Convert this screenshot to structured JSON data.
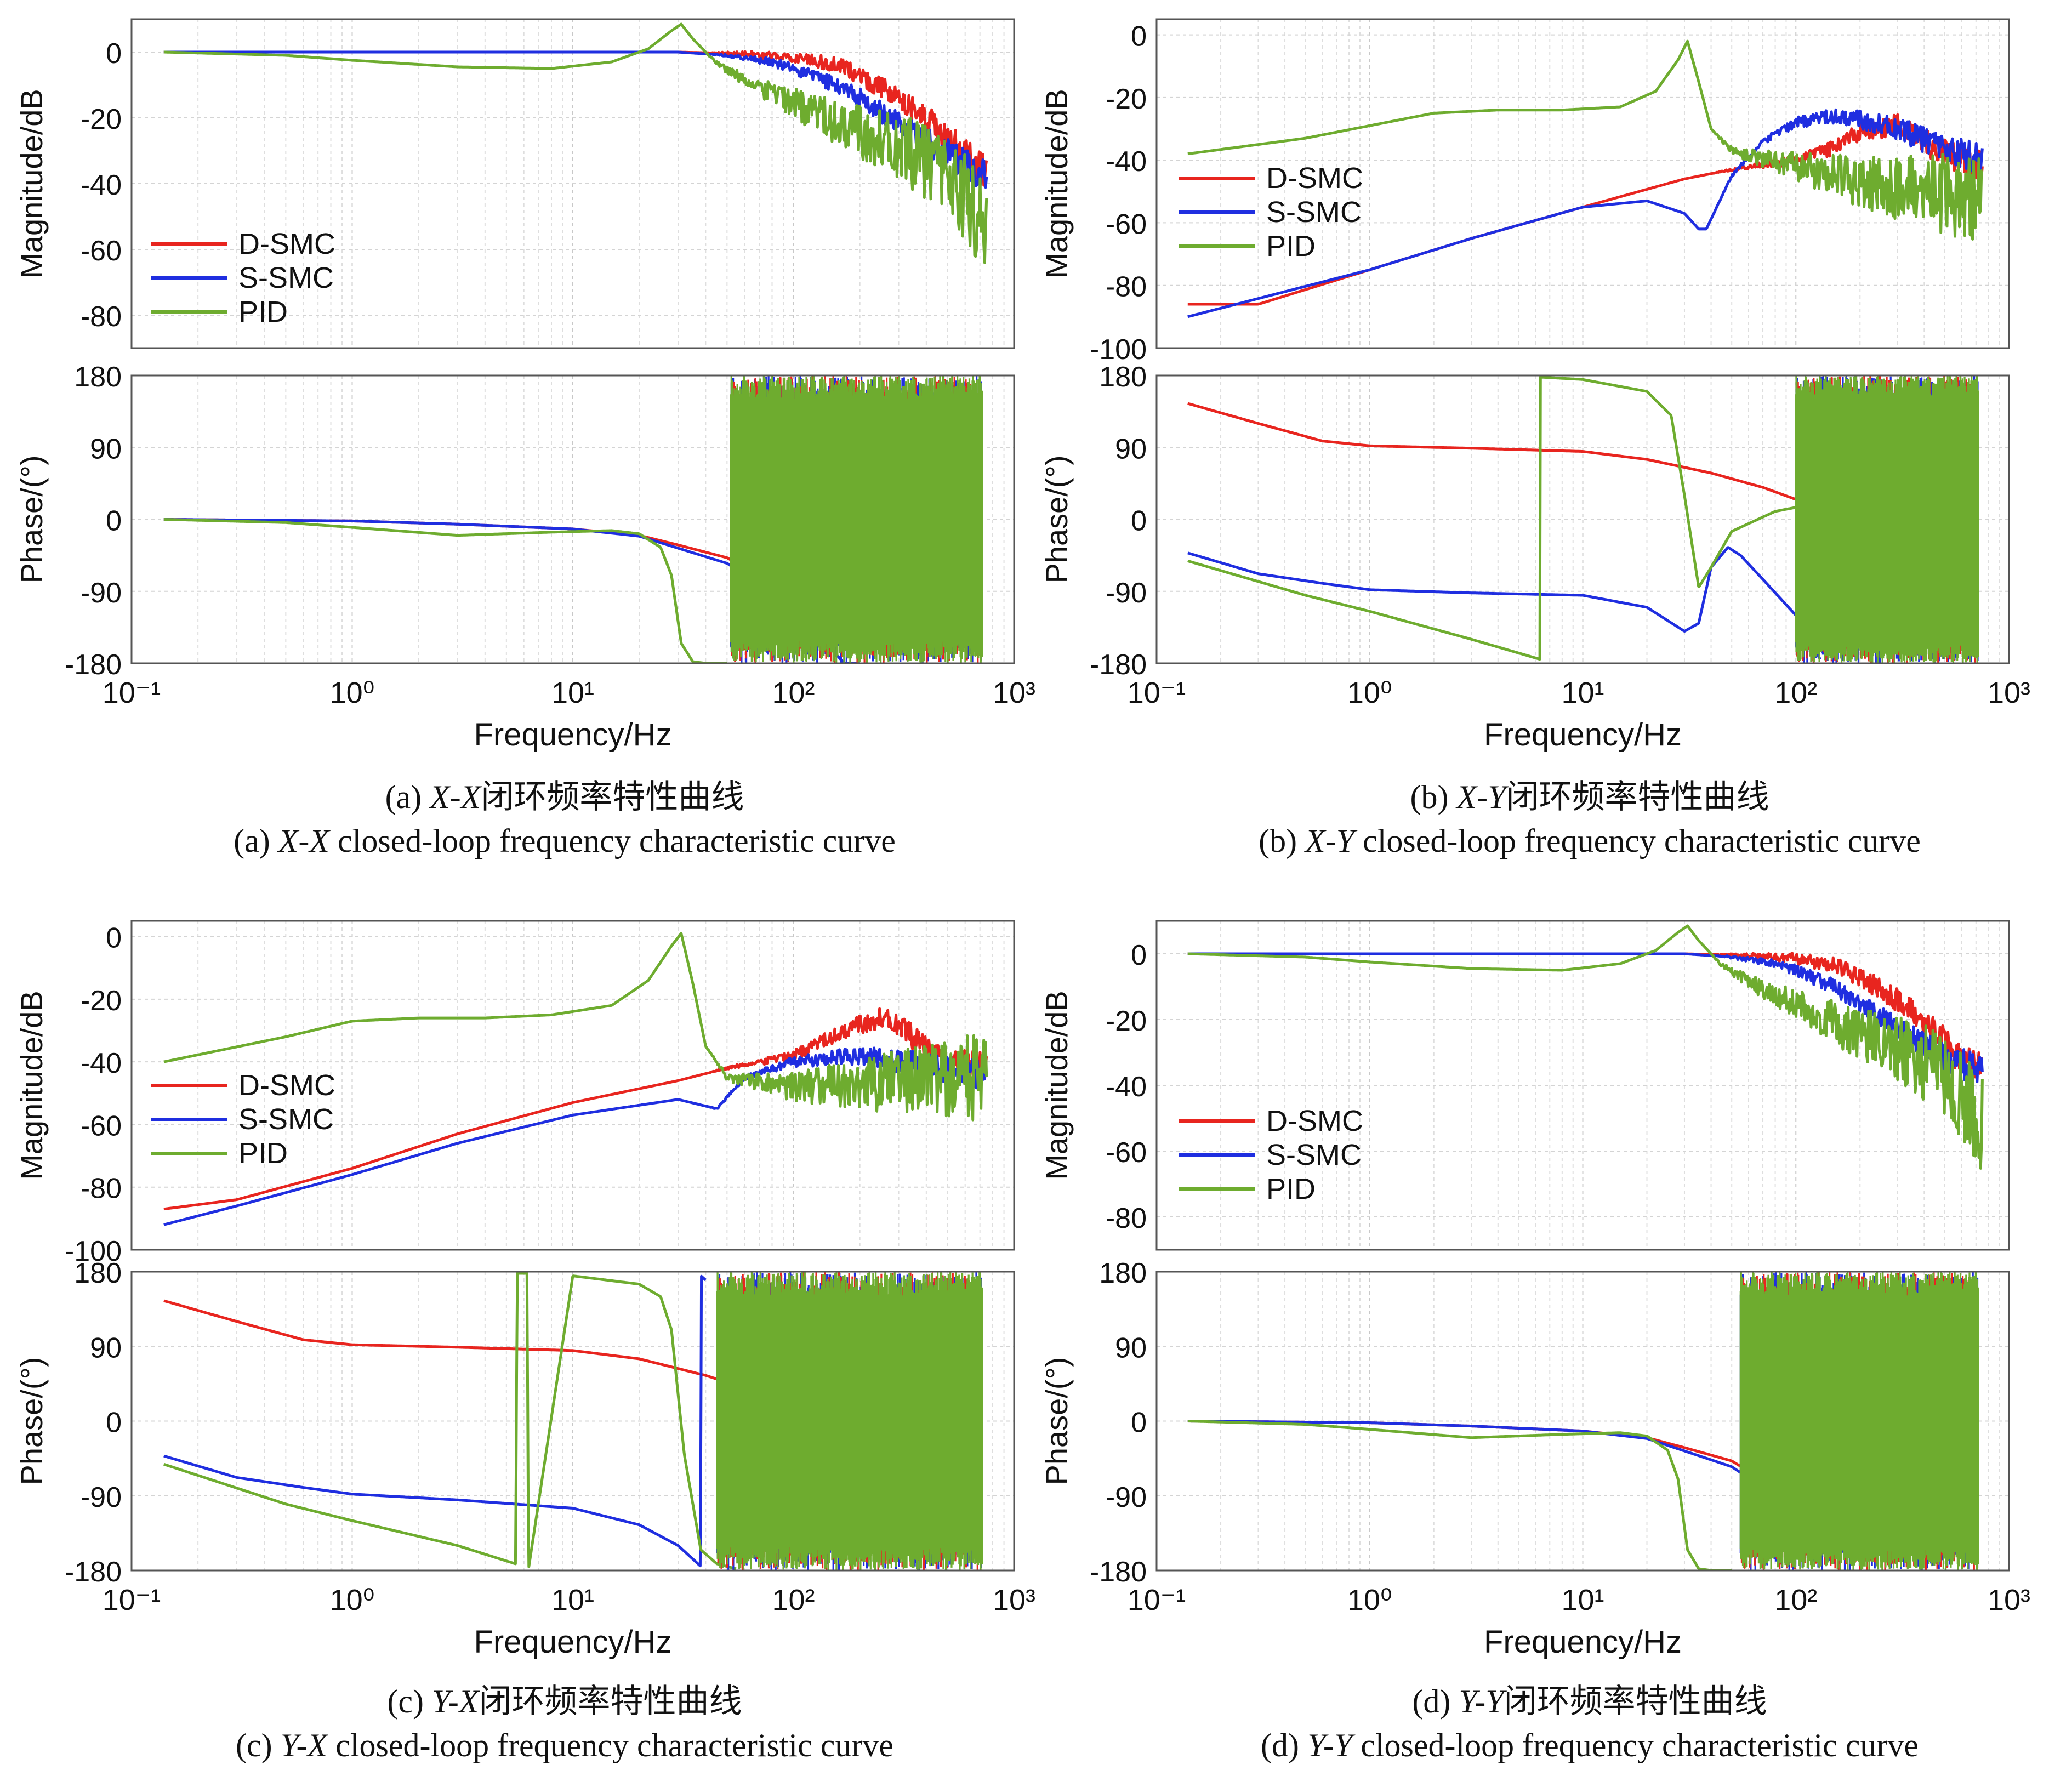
{
  "figure": {
    "legend_names": [
      "D-SMC",
      "S-SMC",
      "PID"
    ],
    "series_colors": {
      "D-SMC": "#e8251f",
      "S-SMC": "#1f2ee0",
      "PID": "#6eac2f"
    },
    "freq_axis": {
      "label": "Frequency/Hz",
      "ticks": [
        "10⁻¹",
        "10⁰",
        "10¹",
        "10²",
        "10³"
      ]
    },
    "magnitude_label": "Magnitude/dB",
    "phase_label": "Phase/(°)",
    "phase_ticks": [
      "180",
      "90",
      "0",
      "-90",
      "-180"
    ]
  },
  "chart_data": [
    {
      "id": "a",
      "type": "line",
      "title": "X-X closed-loop frequency characteristic curve",
      "xlabel": "Frequency/Hz",
      "xscale": "log",
      "xlim": [
        0.1,
        1000
      ],
      "magnitude": {
        "ylabel": "Magnitude/dB",
        "ylim": [
          -90,
          10
        ],
        "yticks": [
          "0",
          "-20",
          "-40",
          "-60",
          "-80"
        ],
        "series": [
          {
            "name": "D-SMC",
            "x": [
              0.14,
              1,
              10,
              30,
              60,
              100,
              150,
              200,
              300,
              400,
              500,
              600,
              750
            ],
            "y": [
              0,
              0,
              0,
              0,
              -0.5,
              -1.5,
              -3.5,
              -7,
              -14,
              -20,
              -26,
              -31,
              -37
            ]
          },
          {
            "name": "S-SMC",
            "x": [
              0.14,
              1,
              10,
              30,
              50,
              80,
              100,
              150,
              200,
              300,
              400,
              500,
              750
            ],
            "y": [
              0,
              0,
              0,
              0,
              -1,
              -3,
              -5,
              -9.5,
              -14,
              -22,
              -27,
              -31,
              -38
            ]
          },
          {
            "name": "PID",
            "x": [
              0.14,
              0.5,
              1,
              3,
              8,
              15,
              22,
              28,
              31,
              35,
              45,
              60,
              100,
              150,
              200,
              300,
              400,
              500,
              600,
              750
            ],
            "y": [
              0,
              -1,
              -2.5,
              -4.5,
              -5,
              -3,
              1,
              6.5,
              8.5,
              4,
              -3.5,
              -8.5,
              -15.5,
              -21,
              -24,
              -29,
              -33,
              -37,
              -44,
              -55
            ]
          }
        ]
      },
      "phase": {
        "ylabel": "Phase/(°)",
        "ylim": [
          -180,
          180
        ],
        "series": [
          {
            "name": "D-SMC",
            "x": [
              0.14,
              1,
              3,
              10,
              20,
              30,
              50,
              80,
              100,
              150,
              200
            ],
            "y": [
              0,
              -2,
              -6,
              -12,
              -20,
              -32,
              -48,
              -80,
              -95,
              -120,
              -140
            ]
          },
          {
            "name": "S-SMC",
            "x": [
              0.14,
              1,
              3,
              10,
              20,
              30,
              50,
              70,
              100,
              130,
              170,
              200
            ],
            "y": [
              0,
              -2,
              -6,
              -12,
              -21,
              -36,
              -55,
              -80,
              -110,
              -145,
              -180,
              -180
            ]
          },
          {
            "name": "PID",
            "x": [
              0.14,
              0.5,
              1,
              3,
              8,
              15,
              20,
              25,
              28,
              31,
              35,
              40,
              50
            ],
            "y": [
              0,
              -4,
              -10,
              -20,
              -16,
              -14,
              -18,
              -35,
              -70,
              -155,
              -178,
              -180,
              -180
            ]
          }
        ]
      }
    },
    {
      "id": "b",
      "type": "line",
      "title": "X-Y closed-loop frequency characteristic curve",
      "xlabel": "Frequency/Hz",
      "xscale": "log",
      "xlim": [
        0.1,
        1000
      ],
      "magnitude": {
        "ylabel": "Magnitude/dB",
        "ylim": [
          -100,
          5
        ],
        "yticks": [
          "0",
          "-20",
          "-40",
          "-60",
          "-80",
          "-100"
        ],
        "series": [
          {
            "name": "D-SMC",
            "x": [
              0.14,
              0.3,
              1,
              3,
              10,
              30,
              50,
              100,
              150,
              200,
              300,
              500,
              750
            ],
            "y": [
              -86,
              -86,
              -75,
              -65,
              -55,
              -46,
              -43,
              -40,
              -36,
              -31,
              -29,
              -38,
              -42
            ]
          },
          {
            "name": "S-SMC",
            "x": [
              0.14,
              1,
              3,
              10,
              20,
              30,
              35,
              38,
              50,
              70,
              100,
              150,
              200,
              300,
              500,
              750
            ],
            "y": [
              -90,
              -75,
              -65,
              -55,
              -53,
              -57,
              -62,
              -62,
              -45,
              -34,
              -28,
              -26,
              -27,
              -30,
              -36,
              -40
            ]
          },
          {
            "name": "PID",
            "x": [
              0.14,
              0.5,
              1,
              2,
              4,
              8,
              15,
              22,
              28,
              31,
              35,
              40,
              50,
              100,
              200,
              400,
              750
            ],
            "y": [
              -38,
              -33,
              -29,
              -25,
              -24,
              -24,
              -23,
              -18,
              -8,
              -2,
              -15,
              -30,
              -37,
              -42,
              -47,
              -50,
              -52
            ]
          }
        ]
      },
      "phase": {
        "ylabel": "Phase/(°)",
        "ylim": [
          -180,
          180
        ],
        "series": [
          {
            "name": "D-SMC",
            "x": [
              0.14,
              0.3,
              0.6,
              1,
              3,
              10,
              20,
              40,
              70,
              100
            ],
            "y": [
              145,
              120,
              98,
              92,
              89,
              85,
              75,
              58,
              40,
              25
            ]
          },
          {
            "name": "S-SMC",
            "x": [
              0.14,
              0.3,
              0.6,
              1,
              3,
              10,
              20,
              30,
              35,
              40,
              48,
              55,
              70,
              100,
              130
            ],
            "y": [
              -42,
              -68,
              -80,
              -88,
              -92,
              -95,
              -110,
              -140,
              -130,
              -60,
              -35,
              -45,
              -75,
              -120,
              -175
            ]
          },
          {
            "name": "PID",
            "x": [
              0.14,
              0.5,
              1,
              3,
              6.3,
              6.31,
              10,
              20,
              26,
              30,
              35,
              40,
              50,
              80,
              100
            ],
            "y": [
              -52,
              -95,
              -115,
              -150,
              -175,
              178,
              175,
              160,
              130,
              30,
              -85,
              -60,
              -15,
              10,
              15
            ]
          }
        ]
      }
    },
    {
      "id": "c",
      "type": "line",
      "title": "Y-X closed-loop frequency characteristic curve",
      "xlabel": "Frequency/Hz",
      "xscale": "log",
      "xlim": [
        0.1,
        1000
      ],
      "magnitude": {
        "ylabel": "Magnitude/dB",
        "ylim": [
          -100,
          5
        ],
        "yticks": [
          "0",
          "-20",
          "-40",
          "-60",
          "-80",
          "-100"
        ],
        "series": [
          {
            "name": "D-SMC",
            "x": [
              0.14,
              0.3,
              1,
              3,
              10,
              30,
              50,
              100,
              150,
              200,
              250,
              300,
              400,
              500,
              750
            ],
            "y": [
              -87,
              -84,
              -74,
              -63,
              -53,
              -46,
              -42,
              -38,
              -32,
              -28,
              -26,
              -28,
              -36,
              -40,
              -42
            ]
          },
          {
            "name": "S-SMC",
            "x": [
              0.14,
              0.3,
              1,
              3,
              10,
              30,
              45,
              60,
              100,
              200,
              400,
              750
            ],
            "y": [
              -92,
              -86,
              -76,
              -66,
              -57,
              -52,
              -55,
              -45,
              -40,
              -38,
              -41,
              -44
            ]
          },
          {
            "name": "PID",
            "x": [
              0.14,
              0.5,
              1,
              2,
              4,
              8,
              15,
              22,
              28,
              31,
              35,
              40,
              50,
              100,
              200,
              400,
              750
            ],
            "y": [
              -40,
              -32,
              -27,
              -26,
              -26,
              -25,
              -22,
              -14,
              -3,
              1,
              -15,
              -35,
              -45,
              -48,
              -47,
              -46,
              -45
            ]
          }
        ]
      },
      "phase": {
        "ylabel": "Phase/(°)",
        "ylim": [
          -180,
          180
        ],
        "series": [
          {
            "name": "D-SMC",
            "x": [
              0.14,
              0.3,
              0.6,
              1,
              3,
              10,
              20,
              40,
              60
            ],
            "y": [
              145,
              120,
              98,
              92,
              89,
              85,
              75,
              55,
              40
            ]
          },
          {
            "name": "S-SMC",
            "x": [
              0.14,
              0.3,
              0.6,
              1,
              3,
              10,
              20,
              30,
              38,
              38.1,
              40
            ],
            "y": [
              -42,
              -68,
              -80,
              -88,
              -95,
              -105,
              -125,
              -150,
              -175,
              175,
              170
            ]
          },
          {
            "name": "PID",
            "x": [
              0.14,
              0.5,
              1,
              3,
              5.5,
              5.6,
              6.2,
              6.3,
              10,
              20,
              25,
              28,
              32,
              38,
              45,
              55
            ],
            "y": [
              -52,
              -100,
              -120,
              -150,
              -172,
              178,
              178,
              -178,
              175,
              165,
              150,
              110,
              -40,
              -155,
              -172,
              -178
            ]
          }
        ]
      }
    },
    {
      "id": "d",
      "type": "line",
      "title": "Y-Y closed-loop frequency characteristic curve",
      "xlabel": "Frequency/Hz",
      "xscale": "log",
      "xlim": [
        0.1,
        1000
      ],
      "magnitude": {
        "ylabel": "Magnitude/dB",
        "ylim": [
          -90,
          10
        ],
        "yticks": [
          "0",
          "-20",
          "-40",
          "-60",
          "-80"
        ],
        "series": [
          {
            "name": "D-SMC",
            "x": [
              0.14,
              1,
              10,
              30,
              60,
              100,
              150,
              200,
              300,
              400,
              500,
              600,
              750
            ],
            "y": [
              0,
              0,
              0,
              0,
              -0.5,
              -1.5,
              -3.5,
              -7,
              -14,
              -21,
              -27,
              -32,
              -35
            ]
          },
          {
            "name": "S-SMC",
            "x": [
              0.14,
              1,
              10,
              30,
              50,
              80,
              100,
              150,
              200,
              300,
              400,
              500,
              750
            ],
            "y": [
              0,
              0,
              0,
              0,
              -1,
              -3,
              -5,
              -10,
              -15,
              -23,
              -28,
              -32,
              -36
            ]
          },
          {
            "name": "PID",
            "x": [
              0.14,
              0.5,
              1,
              3,
              8,
              15,
              22,
              28,
              31,
              35,
              45,
              60,
              100,
              150,
              200,
              300,
              400,
              500,
              600,
              750
            ],
            "y": [
              0,
              -1,
              -2.5,
              -4.5,
              -5,
              -3,
              1,
              6.5,
              8.5,
              4,
              -3.5,
              -8.5,
              -15.5,
              -21,
              -24,
              -29,
              -33,
              -37,
              -43,
              -52
            ]
          }
        ]
      },
      "phase": {
        "ylabel": "Phase/(°)",
        "ylim": [
          -180,
          180
        ],
        "series": [
          {
            "name": "D-SMC",
            "x": [
              0.14,
              1,
              3,
              10,
              20,
              30,
              50,
              80,
              100,
              120
            ],
            "y": [
              0,
              -2,
              -6,
              -12,
              -20,
              -32,
              -48,
              -80,
              -95,
              -110
            ]
          },
          {
            "name": "S-SMC",
            "x": [
              0.14,
              1,
              3,
              10,
              20,
              30,
              50,
              70,
              100,
              120
            ],
            "y": [
              0,
              -2,
              -6,
              -12,
              -21,
              -36,
              -55,
              -80,
              -110,
              -130
            ]
          },
          {
            "name": "PID",
            "x": [
              0.14,
              0.5,
              1,
              3,
              8,
              15,
              20,
              25,
              28,
              31,
              35,
              40,
              50
            ],
            "y": [
              0,
              -4,
              -10,
              -20,
              -16,
              -14,
              -18,
              -35,
              -70,
              -155,
              -178,
              -180,
              -180
            ]
          }
        ]
      }
    }
  ],
  "captions": {
    "a": {
      "prefix": "(a) ",
      "italic": "X-X",
      "cn": "闭环频率特性曲线",
      "en": " closed-loop frequency characteristic curve"
    },
    "b": {
      "prefix": "(b) ",
      "italic": "X-Y",
      "cn": "闭环频率特性曲线",
      "en": " closed-loop frequency characteristic curve"
    },
    "c": {
      "prefix": "(c) ",
      "italic": "Y-X",
      "cn": "闭环频率特性曲线",
      "en": " closed-loop frequency characteristic curve"
    },
    "d": {
      "prefix": "(d) ",
      "italic": "Y-Y",
      "cn": "闭环频率特性曲线",
      "en": " closed-loop frequency characteristic curve"
    }
  }
}
